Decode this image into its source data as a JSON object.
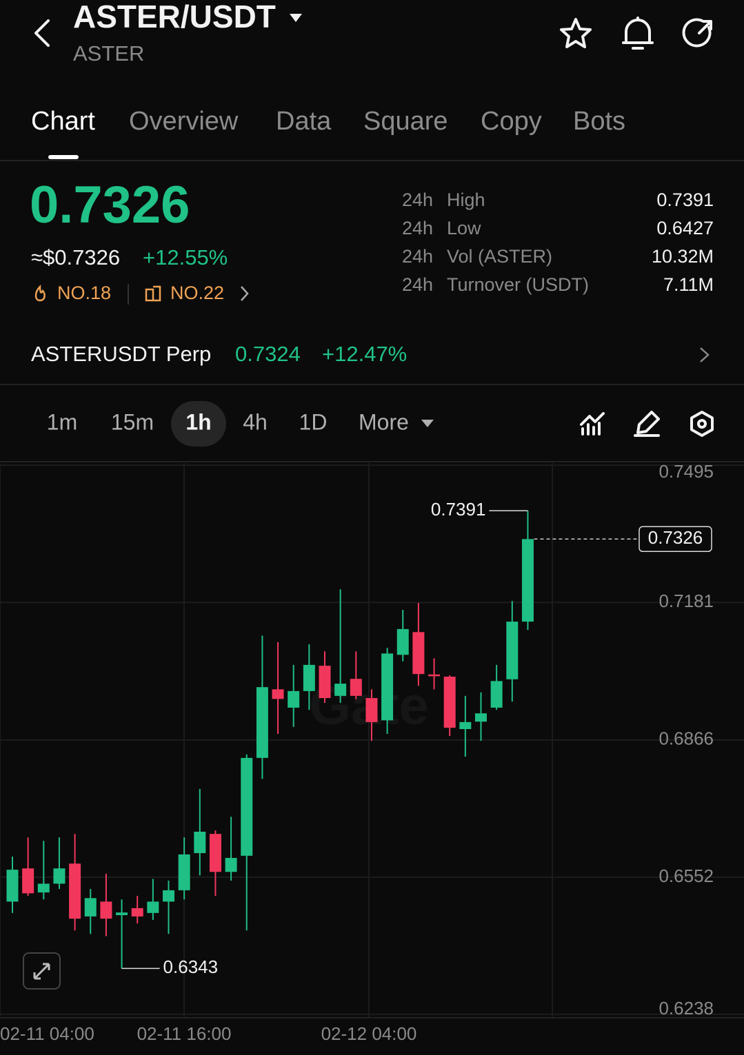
{
  "header": {
    "title": "ASTER/USDT",
    "subtitle": "ASTER"
  },
  "tabs": [
    "Chart",
    "Overview",
    "Data",
    "Square",
    "Copy",
    "Bots"
  ],
  "ticker": {
    "price": "0.7326",
    "usd_price": "≈$0.7326",
    "change": "+12.55%",
    "rank_hot": "NO.18",
    "rank_other": "NO.22"
  },
  "stats": [
    {
      "period": "24h",
      "label": "High",
      "value": "0.7391"
    },
    {
      "period": "24h",
      "label": "Low",
      "value": "0.6427"
    },
    {
      "period": "24h",
      "label": "Vol (ASTER)",
      "value": "10.32M"
    },
    {
      "period": "24h",
      "label": "Turnover (USDT)",
      "value": "7.11M"
    }
  ],
  "perp": {
    "name": "ASTERUSDT Perp",
    "price": "0.7324",
    "change": "+12.47%"
  },
  "intervals": [
    "1m",
    "15m",
    "1h",
    "4h",
    "1D",
    "More"
  ],
  "chart_data": {
    "type": "candlestick",
    "watermark": "Gate",
    "x_labels": [
      "02-11 04:00",
      "02-11 16:00",
      "02-12 04:00"
    ],
    "open": [
      0.6496,
      0.6572,
      0.6517,
      0.6537,
      0.6583,
      0.6462,
      0.6496,
      0.6465,
      0.6481,
      0.647,
      0.6496,
      0.6522,
      0.6607,
      0.6651,
      0.6564,
      0.6601,
      0.6825,
      0.6982,
      0.694,
      0.6978,
      0.7036,
      0.6967,
      0.7006,
      0.6962,
      0.6911,
      0.7061,
      0.7113,
      0.7016,
      0.7011,
      0.6891,
      0.6908,
      0.694,
      0.7005,
      0.7137
    ],
    "high": [
      0.6599,
      0.6643,
      0.6635,
      0.6643,
      0.6651,
      0.6525,
      0.656,
      0.6501,
      0.6509,
      0.6548,
      0.6544,
      0.6643,
      0.6754,
      0.6659,
      0.669,
      0.6833,
      0.7105,
      0.709,
      0.7038,
      0.7085,
      0.7069,
      0.7211,
      0.7069,
      0.6982,
      0.7077,
      0.7164,
      0.718,
      0.7053,
      0.7014,
      0.6967,
      0.6975,
      0.7038,
      0.7184,
      0.7391
    ],
    "low": [
      0.647,
      0.6509,
      0.6501,
      0.6525,
      0.643,
      0.6422,
      0.6417,
      0.6343,
      0.6446,
      0.6454,
      0.6422,
      0.6501,
      0.6556,
      0.6509,
      0.6544,
      0.643,
      0.6777,
      0.688,
      0.6896,
      0.6935,
      0.6951,
      0.6951,
      0.6959,
      0.6864,
      0.688,
      0.7046,
      0.699,
      0.6982,
      0.6875,
      0.6828,
      0.6864,
      0.6935,
      0.6954,
      0.7118
    ],
    "close": [
      0.6569,
      0.6515,
      0.6537,
      0.6572,
      0.6457,
      0.6504,
      0.6457,
      0.6471,
      0.6462,
      0.6496,
      0.6522,
      0.6604,
      0.6656,
      0.6564,
      0.6596,
      0.6825,
      0.6987,
      0.696,
      0.6978,
      0.7038,
      0.6962,
      0.6995,
      0.6967,
      0.6907,
      0.7064,
      0.712,
      0.7017,
      0.7012,
      0.6894,
      0.6907,
      0.6927,
      0.7001,
      0.7137,
      0.7326
    ],
    "up_color": "#1fbf85",
    "down_color": "#f2375c",
    "ylim": [
      0.623,
      0.75
    ],
    "yticks": [
      0.7495,
      0.7181,
      0.6866,
      0.6552,
      0.6238
    ],
    "grid": true,
    "last_price": 0.7326,
    "high_marker": 0.7391,
    "low_marker": 0.6343
  }
}
